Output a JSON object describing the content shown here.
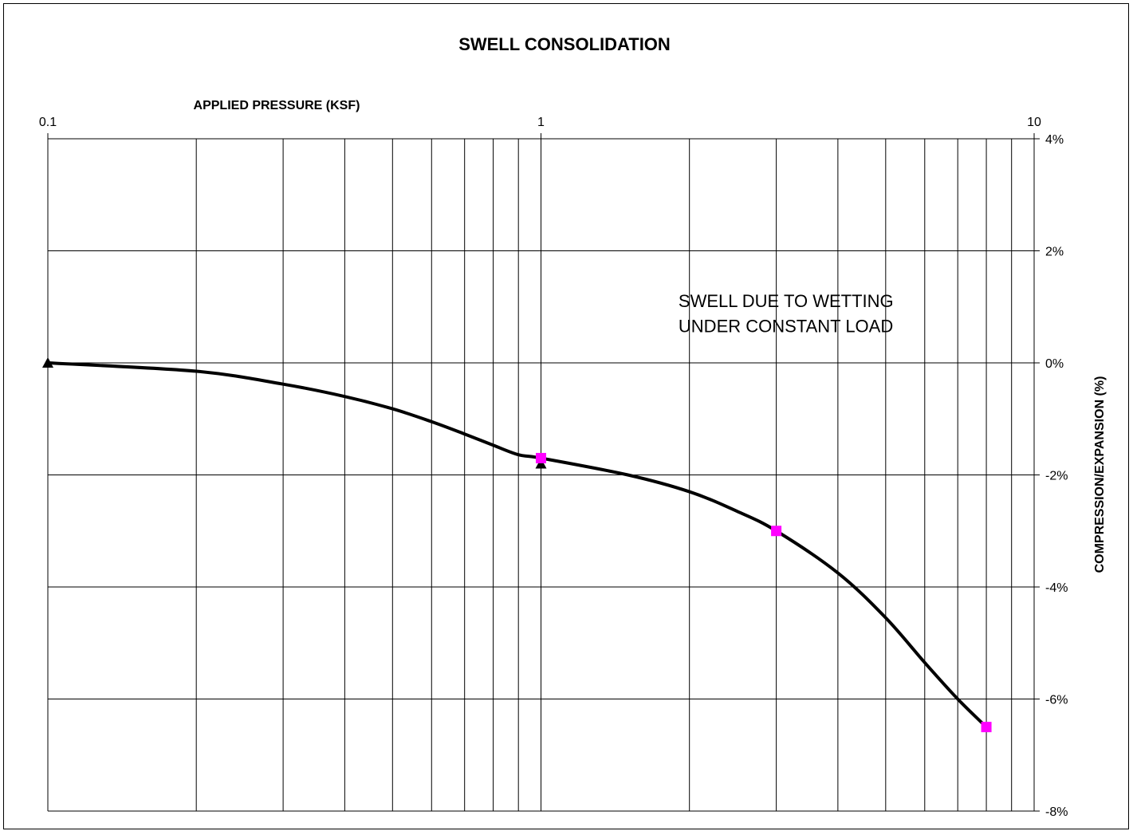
{
  "chart_data": {
    "type": "scatter",
    "title": "SWELL CONSOLIDATION",
    "xlabel": "APPLIED PRESSURE (KSF)",
    "ylabel": "COMPRESSION/EXPANSION (%)",
    "x_scale": "log",
    "xlim": [
      0.1,
      10
    ],
    "ylim": [
      -8,
      4
    ],
    "x_ticks": [
      0.1,
      1,
      10
    ],
    "x_tick_labels": [
      "0.1",
      "1",
      "10"
    ],
    "y_ticks": [
      4,
      2,
      0,
      -2,
      -4,
      -6,
      -8
    ],
    "y_tick_labels": [
      "4%",
      "2%",
      "0%",
      "-2%",
      "-4%",
      "-6%",
      "-8%"
    ],
    "grid": true,
    "x_axis_position": "top",
    "y_axis_position": "right",
    "series": [
      {
        "marker": "triangle",
        "color": "#000000",
        "points": [
          {
            "x": 0.1,
            "y": 0.0
          },
          {
            "x": 1.0,
            "y": -1.8
          }
        ]
      },
      {
        "marker": "square",
        "color": "#ff00ff",
        "points": [
          {
            "x": 1.0,
            "y": -1.7
          },
          {
            "x": 3.0,
            "y": -3.0
          },
          {
            "x": 8.0,
            "y": -6.5
          }
        ]
      }
    ],
    "curve": {
      "color": "#000000",
      "points": [
        {
          "x": 0.1,
          "y": 0.0
        },
        {
          "x": 0.2,
          "y": -0.15
        },
        {
          "x": 0.3,
          "y": -0.38
        },
        {
          "x": 0.4,
          "y": -0.6
        },
        {
          "x": 0.5,
          "y": -0.82
        },
        {
          "x": 0.6,
          "y": -1.05
        },
        {
          "x": 0.7,
          "y": -1.27
        },
        {
          "x": 0.8,
          "y": -1.47
        },
        {
          "x": 0.9,
          "y": -1.64
        },
        {
          "x": 1.0,
          "y": -1.7
        },
        {
          "x": 1.5,
          "y": -2.0
        },
        {
          "x": 2.0,
          "y": -2.3
        },
        {
          "x": 2.5,
          "y": -2.65
        },
        {
          "x": 3.0,
          "y": -3.0
        },
        {
          "x": 4.0,
          "y": -3.75
        },
        {
          "x": 5.0,
          "y": -4.55
        },
        {
          "x": 6.0,
          "y": -5.35
        },
        {
          "x": 7.0,
          "y": -6.0
        },
        {
          "x": 8.0,
          "y": -6.5
        }
      ]
    },
    "annotations": [
      {
        "text": "SWELL DUE TO WETTING",
        "x": 1.9,
        "y": 1.0
      },
      {
        "text": "UNDER CONSTANT LOAD",
        "x": 1.9,
        "y": 0.55
      }
    ]
  }
}
